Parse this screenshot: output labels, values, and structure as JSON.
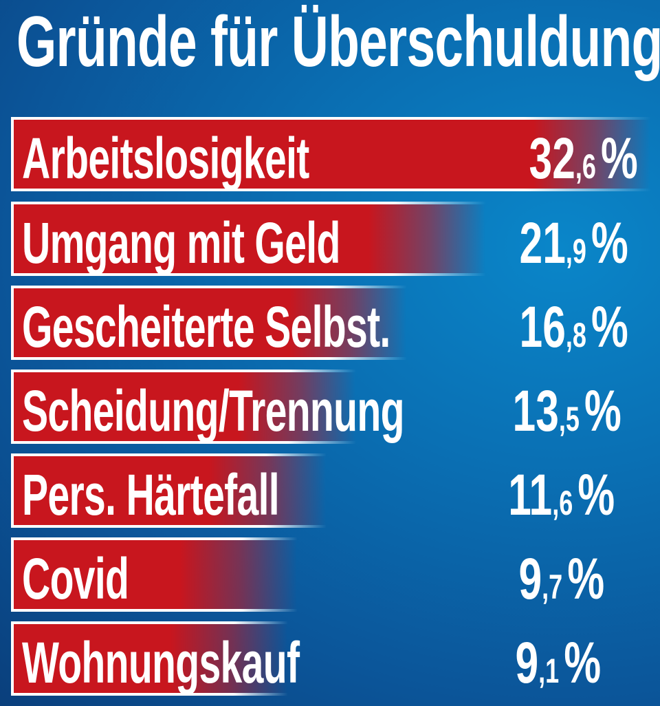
{
  "chart_data": {
    "type": "bar",
    "orientation": "horizontal",
    "title": "Gründe für Überschuldung",
    "unit": "%",
    "categories": [
      "Arbeitslosigkeit",
      "Umgang mit Geld",
      "Gescheiterte Selbst.",
      "Scheidung/Trennung",
      "Pers. Härtefall",
      "Covid",
      "Wohnungskauf"
    ],
    "values": [
      32.6,
      21.9,
      16.8,
      13.5,
      11.6,
      9.7,
      9.1
    ],
    "value_labels": [
      {
        "int": "32",
        "dec": ",6",
        "pct": "%"
      },
      {
        "int": "21",
        "dec": ",9",
        "pct": "%"
      },
      {
        "int": "16",
        "dec": ",8",
        "pct": "%"
      },
      {
        "int": "13",
        "dec": ",5",
        "pct": "%"
      },
      {
        "int": "11",
        "dec": ",6",
        "pct": "%"
      },
      {
        "int": "9",
        "dec": ",7",
        "pct": "%"
      },
      {
        "int": "9",
        "dec": ",1",
        "pct": "%"
      }
    ],
    "grid": false,
    "legend": "none"
  },
  "colors": {
    "bar": "#c8161e",
    "background": "#0b65aa",
    "text": "#ffffff"
  }
}
